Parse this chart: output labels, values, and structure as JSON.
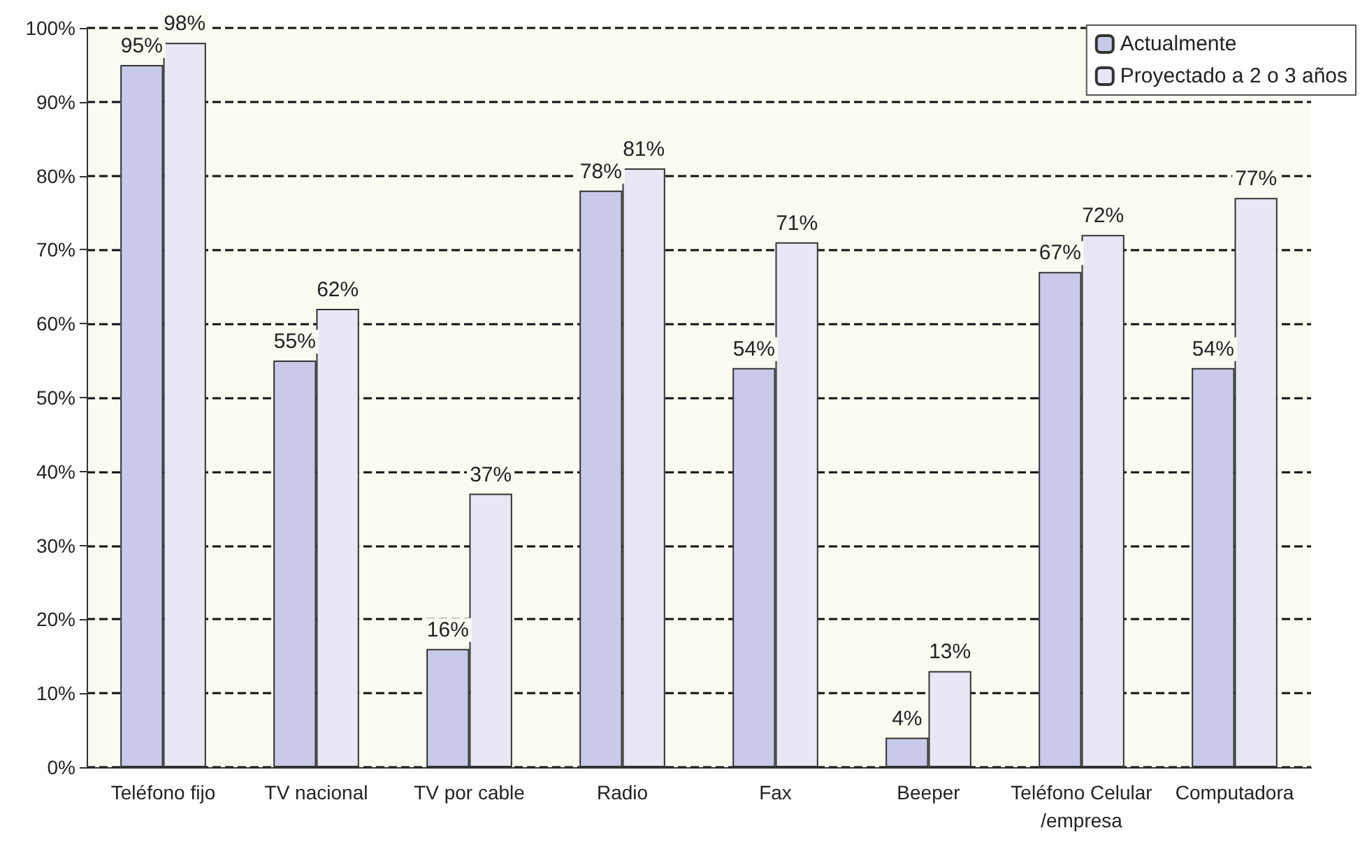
{
  "chart_data": {
    "type": "bar",
    "categories": [
      "Teléfono fijo",
      "TV nacional",
      "TV por cable",
      "Radio",
      "Fax",
      "Beeper",
      "Teléfono Celular/empresa",
      "Computadora"
    ],
    "series": [
      {
        "name": "Actualmente",
        "color": "#c9c9ea",
        "values": [
          95,
          55,
          16,
          78,
          54,
          4,
          67,
          54
        ],
        "value_labels": [
          "95%",
          "55%",
          "16%",
          "78%",
          "54%",
          "4%",
          "67%",
          "54%"
        ]
      },
      {
        "name": "Proyectado a 2 o 3 años",
        "color": "#e8e8f4",
        "values": [
          98,
          62,
          37,
          81,
          71,
          13,
          72,
          77
        ],
        "value_labels": [
          "98%",
          "62%",
          "37%",
          "81%",
          "71%",
          "13%",
          "72%",
          "77%"
        ]
      }
    ],
    "ylim": [
      0,
      100
    ],
    "yticks": [
      {
        "value": 0,
        "label": "0%"
      },
      {
        "value": 10,
        "label": "10%"
      },
      {
        "value": 20,
        "label": "20%"
      },
      {
        "value": 30,
        "label": "30%"
      },
      {
        "value": 40,
        "label": "40%"
      },
      {
        "value": 50,
        "label": "50%"
      },
      {
        "value": 60,
        "label": "60%"
      },
      {
        "value": 70,
        "label": "70%"
      },
      {
        "value": 80,
        "label": "80%"
      },
      {
        "value": 90,
        "label": "90%"
      },
      {
        "value": 100,
        "label": "100%"
      }
    ],
    "grid": "y",
    "legend": "top right"
  }
}
